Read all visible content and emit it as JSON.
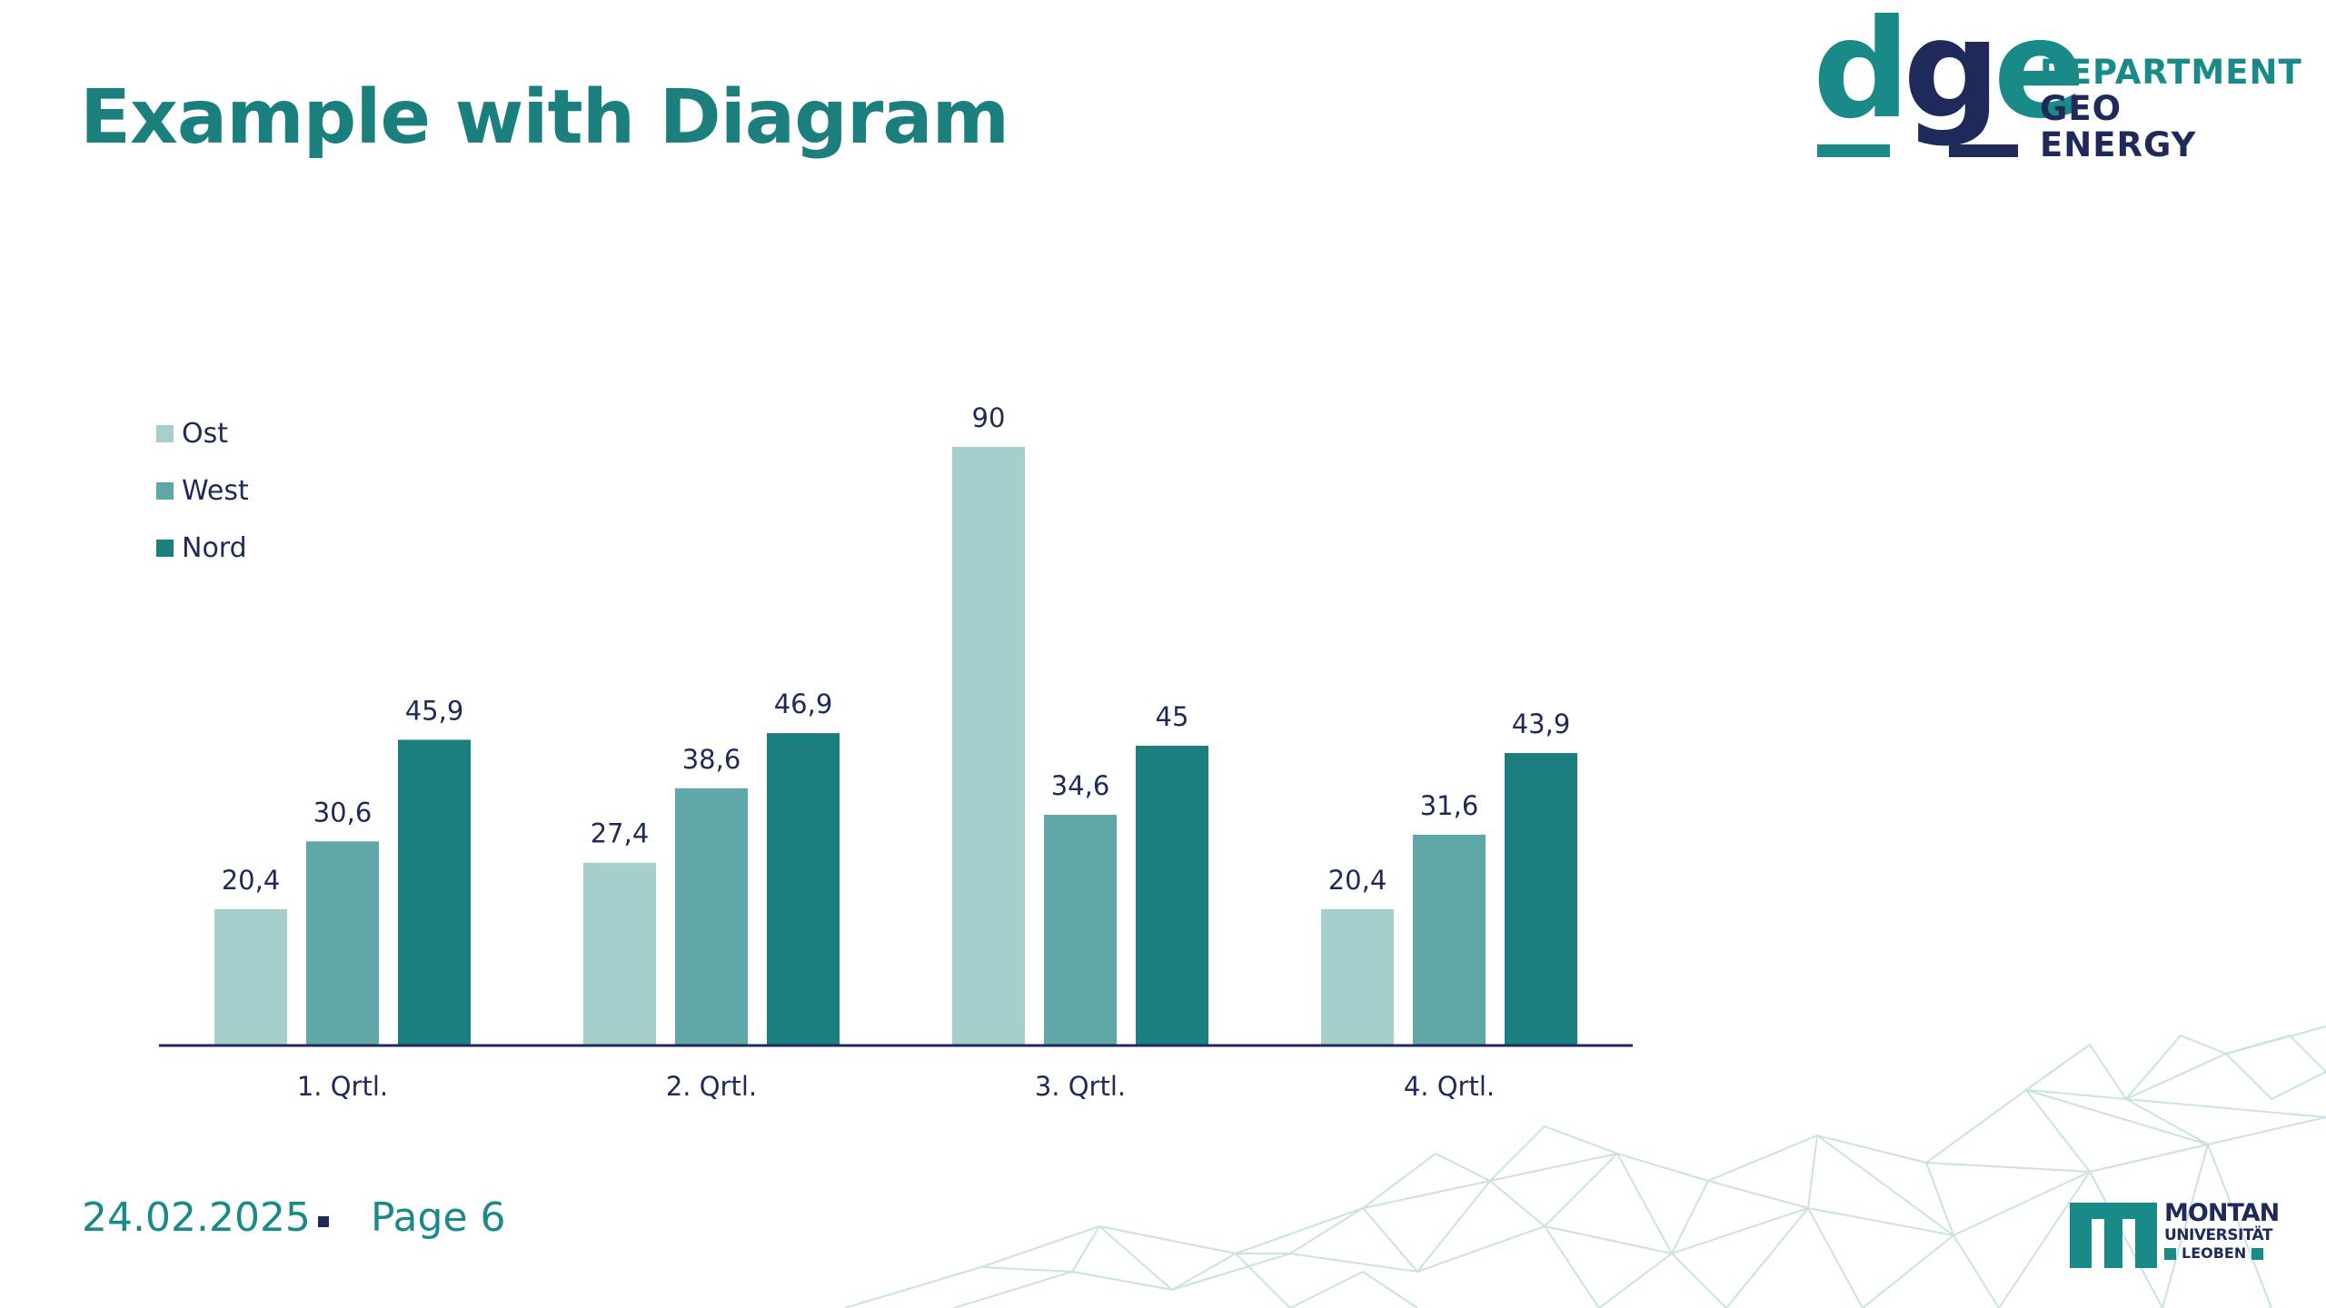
{
  "slide": {
    "title": "Example with Diagram",
    "footer": {
      "date": "24.02.2025",
      "page": "Page 6"
    }
  },
  "logo_dge": {
    "letters": [
      "d",
      "g",
      "e"
    ],
    "lines": [
      "DEPARTMENT",
      "GEO",
      "ENERGY"
    ],
    "colors": {
      "teal": "#1a8a88",
      "navy": "#1f2a5a"
    }
  },
  "logo_mul": {
    "lines": [
      "MONTAN",
      "UNIVERSITÄT",
      "LEOBEN"
    ]
  },
  "chart_data": {
    "type": "bar",
    "categories": [
      "1. Qrtl.",
      "2. Qrtl.",
      "3. Qrtl.",
      "4. Qrtl."
    ],
    "series": [
      {
        "name": "Ost",
        "color": "#a6cfcc",
        "values": [
          20.4,
          27.4,
          90,
          20.4
        ],
        "labels": [
          "20,4",
          "27,4",
          "90",
          "20,4"
        ]
      },
      {
        "name": "West",
        "color": "#5fa8a7",
        "values": [
          30.6,
          38.6,
          34.6,
          31.6
        ],
        "labels": [
          "30,6",
          "38,6",
          "34,6",
          "31,6"
        ]
      },
      {
        "name": "Nord",
        "color": "#1a7f7d",
        "values": [
          45.9,
          46.9,
          45,
          43.9
        ],
        "labels": [
          "45,9",
          "46,9",
          "45",
          "43,9"
        ]
      }
    ],
    "ylim": [
      0,
      90
    ],
    "grid": false,
    "legend": "top-left",
    "axis_color": "#1f2a5a",
    "text_color": "#1f2a5a"
  }
}
